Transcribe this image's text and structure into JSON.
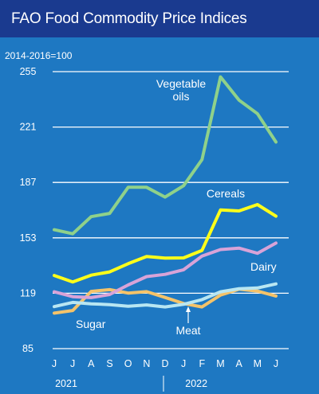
{
  "title": "FAO Food Commodity Price Indices",
  "colors": {
    "title_bg": "#1a3a8f",
    "plot_bg": "#1e78c2",
    "grid": "#ffffff",
    "text": "#ffffff",
    "vegetable_oils": "#8fd18a",
    "cereals": "#ffff1a",
    "dairy": "#d8a3d8",
    "meat": "#b8e6f2",
    "sugar": "#f4c36a"
  },
  "chart_data": {
    "type": "line",
    "title": "FAO Food Commodity Price Indices",
    "unit_note": "2014-2016=100",
    "x": [
      "J",
      "J",
      "A",
      "S",
      "O",
      "N",
      "D",
      "J",
      "F",
      "M",
      "A",
      "M",
      "J"
    ],
    "year_labels": [
      "2021",
      "2022"
    ],
    "ylim": [
      85,
      255
    ],
    "yticks": [
      85,
      119,
      153,
      187,
      221,
      255
    ],
    "grid": true,
    "series": [
      {
        "name": "Vegetable oils",
        "label_lines": [
          "Vegetable",
          "oils"
        ],
        "color": "#8fd18a",
        "values": [
          158,
          155.5,
          166,
          168,
          184,
          184,
          178,
          185,
          201,
          251.8,
          237.5,
          229.2,
          211.8
        ]
      },
      {
        "name": "Cereals",
        "label_lines": [
          "Cereals"
        ],
        "color": "#ffff1a",
        "values": [
          129.9,
          125.9,
          130.1,
          132.1,
          137.1,
          141.5,
          140.6,
          140.7,
          145.3,
          170.1,
          169.5,
          173.4,
          166.3
        ]
      },
      {
        "name": "Dairy",
        "label_lines": [
          "Dairy"
        ],
        "color": "#d8a3d8",
        "values": [
          119.9,
          116.9,
          116.3,
          118.2,
          124.1,
          129.2,
          130.6,
          133.4,
          141.8,
          145.8,
          146.7,
          143.5,
          149.8
        ]
      },
      {
        "name": "Meat",
        "label_lines": [
          "Meat"
        ],
        "color": "#b8e6f2",
        "values": [
          110.8,
          113.4,
          112.5,
          112.0,
          111.0,
          111.8,
          110.6,
          112.2,
          115.1,
          119.9,
          121.8,
          122.2,
          124.7
        ]
      },
      {
        "name": "Sugar",
        "label_lines": [
          "Sugar"
        ],
        "color": "#f4c36a",
        "values": [
          106.8,
          108.4,
          120.1,
          121.2,
          119.1,
          120.0,
          116.4,
          112.7,
          110.6,
          117.9,
          121.5,
          120.3,
          117.3
        ]
      }
    ]
  }
}
